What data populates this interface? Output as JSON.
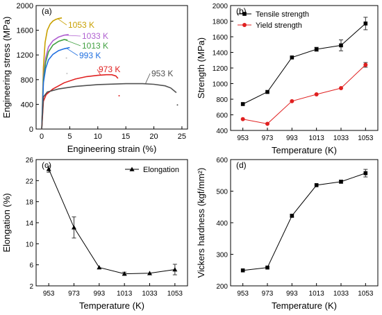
{
  "chart_data": [
    {
      "panel": "(a)",
      "type": "line",
      "xlabel": "Engineering strain (%)",
      "ylabel": "Engineering stress (MPa)",
      "xlim": [
        -1,
        26
      ],
      "ylim": [
        0,
        2000
      ],
      "xticks": [
        0,
        5,
        10,
        15,
        20,
        25
      ],
      "yticks": [
        0,
        400,
        800,
        1200,
        1600,
        2000
      ],
      "series": [
        {
          "name": "1053 K",
          "color": "#c8a000",
          "x": [
            0,
            0.3,
            0.6,
            1.0,
            1.5,
            2.0,
            2.5,
            3.0,
            3.6
          ],
          "y": [
            0,
            1000,
            1400,
            1600,
            1700,
            1750,
            1775,
            1790,
            1800
          ]
        },
        {
          "name": "1033 K",
          "color": "#b060d0",
          "x": [
            0,
            0.3,
            0.7,
            1.2,
            2.0,
            3.0,
            4.0,
            4.8
          ],
          "y": [
            0,
            850,
            1150,
            1330,
            1430,
            1490,
            1520,
            1530
          ]
        },
        {
          "name": "1013 K",
          "color": "#40a040",
          "x": [
            0,
            0.3,
            0.7,
            1.2,
            2.0,
            3.0,
            4.0,
            4.6
          ],
          "y": [
            0,
            800,
            1080,
            1250,
            1360,
            1420,
            1450,
            1440
          ]
        },
        {
          "name": "993 K",
          "color": "#1f6fe0",
          "x": [
            0,
            0.3,
            0.7,
            1.2,
            2.0,
            3.0,
            4.0,
            5.0
          ],
          "y": [
            0,
            750,
            980,
            1120,
            1210,
            1270,
            1300,
            1320
          ]
        },
        {
          "name": "973 K",
          "color": "#e02020",
          "x": [
            0,
            0.3,
            0.8,
            2.0,
            4.0,
            6.0,
            8.0,
            10.0,
            11.5,
            12.5,
            13.2,
            13.6
          ],
          "y": [
            0,
            450,
            560,
            650,
            750,
            810,
            850,
            870,
            880,
            880,
            860,
            820
          ]
        },
        {
          "name": "953 K",
          "color": "#505050",
          "x": [
            0,
            0.3,
            1.0,
            3.0,
            6.0,
            10.0,
            15.0,
            18.0,
            20.0,
            22.0,
            23.0,
            24.0
          ],
          "y": [
            0,
            520,
            600,
            650,
            690,
            720,
            735,
            735,
            725,
            700,
            665,
            590
          ]
        }
      ],
      "fracture_points": [
        {
          "color": "#c0c0c0",
          "x": 4.4,
          "y": 1150
        },
        {
          "color": "#c0c0c0",
          "x": 4.5,
          "y": 900
        },
        {
          "color": "#e02020",
          "x": 13.8,
          "y": 540
        },
        {
          "color": "#505050",
          "x": 24.2,
          "y": 390
        }
      ]
    },
    {
      "panel": "(b)",
      "type": "line",
      "xlabel": "Temperature (K)",
      "ylabel": "Strength (MPa)",
      "categories": [
        "953",
        "973",
        "993",
        "1013",
        "1033",
        "1053"
      ],
      "ylim": [
        400,
        2000
      ],
      "yticks": [
        400,
        600,
        800,
        1000,
        1200,
        1400,
        1600,
        1800,
        2000
      ],
      "legend": "top-left",
      "series": [
        {
          "name": "Tensile strength",
          "color": "#000000",
          "marker": "square",
          "values": [
            738,
            893,
            1335,
            1440,
            1490,
            1770
          ],
          "errors": [
            0,
            0,
            0,
            25,
            70,
            80
          ]
        },
        {
          "name": "Yield strength",
          "color": "#e02020",
          "marker": "circle",
          "values": [
            545,
            485,
            775,
            862,
            942,
            1240
          ],
          "errors": [
            0,
            0,
            0,
            0,
            0,
            30
          ]
        }
      ]
    },
    {
      "panel": "(c)",
      "type": "line",
      "xlabel": "Temperature (K)",
      "ylabel": "Elongation (%)",
      "categories": [
        "953",
        "973",
        "993",
        "1013",
        "1033",
        "1053"
      ],
      "ylim": [
        2,
        26
      ],
      "yticks": [
        2,
        6,
        10,
        14,
        18,
        22,
        26
      ],
      "legend": "top-right",
      "series": [
        {
          "name": "Elongation",
          "color": "#000000",
          "marker": "triangle",
          "values": [
            24.2,
            13.1,
            5.5,
            4.3,
            4.4,
            5.1
          ],
          "errors": [
            0.6,
            2.0,
            0,
            0.3,
            0,
            1.0
          ]
        }
      ]
    },
    {
      "panel": "(d)",
      "type": "line",
      "xlabel": "Temperature (K)",
      "ylabel": "Vickers hardness (kgf/mm²)",
      "categories": [
        "953",
        "973",
        "993",
        "1013",
        "1033",
        "1053"
      ],
      "ylim": [
        200,
        600
      ],
      "yticks": [
        200,
        300,
        400,
        500,
        600
      ],
      "series": [
        {
          "name": "",
          "color": "#000000",
          "marker": "square",
          "values": [
            249,
            258,
            422,
            519,
            530,
            557
          ],
          "errors": [
            0,
            0,
            4,
            0,
            5,
            12
          ]
        }
      ]
    }
  ]
}
